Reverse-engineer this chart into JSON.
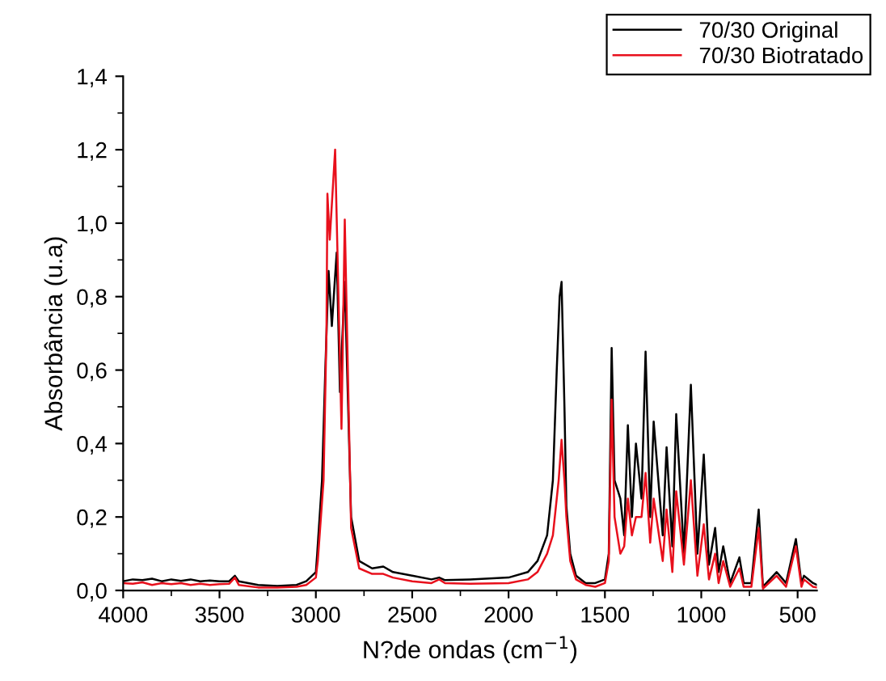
{
  "chart_data": {
    "type": "line",
    "xlabel": "N?de ondas (cm$^{−1}$)",
    "ylabel": "Absorbância (u.a)",
    "xlim": [
      4000,
      400
    ],
    "ylim": [
      0,
      1.4
    ],
    "xticks": [
      4000,
      3500,
      3000,
      2500,
      2000,
      1500,
      1000,
      500
    ],
    "yticks": [
      {
        "value": 0,
        "label": "0,0"
      },
      {
        "value": 0.2,
        "label": "0,2"
      },
      {
        "value": 0.4,
        "label": "0,4"
      },
      {
        "value": 0.6,
        "label": "0,6"
      },
      {
        "value": 0.8,
        "label": "0,8"
      },
      {
        "value": 1.0,
        "label": "1,0"
      },
      {
        "value": 1.2,
        "label": "1,2"
      },
      {
        "value": 1.4,
        "label": "1,4"
      }
    ],
    "legend": "top right",
    "grid": false,
    "marker": "none",
    "line_style": "solid",
    "series": [
      {
        "name": "70/30 Original",
        "color": "#000000",
        "x": [
          4000,
          3950,
          3900,
          3850,
          3800,
          3750,
          3700,
          3650,
          3600,
          3550,
          3500,
          3450,
          3420,
          3400,
          3300,
          3200,
          3100,
          3050,
          3000,
          2993,
          2968,
          2951,
          2934,
          2917,
          2892,
          2875,
          2850,
          2817,
          2775,
          2708,
          2650,
          2600,
          2500,
          2400,
          2360,
          2330,
          2200,
          2000,
          1900,
          1850,
          1800,
          1770,
          1750,
          1735,
          1725,
          1710,
          1700,
          1680,
          1650,
          1600,
          1550,
          1500,
          1480,
          1465,
          1450,
          1420,
          1400,
          1381,
          1360,
          1339,
          1310,
          1289,
          1265,
          1247,
          1200,
          1180,
          1150,
          1130,
          1090,
          1054,
          1020,
          987,
          960,
          928,
          910,
          886,
          850,
          802,
          780,
          740,
          702,
          680,
          609,
          560,
          509,
          480,
          467,
          420,
          400
        ],
        "values": [
          0.025,
          0.03,
          0.028,
          0.032,
          0.025,
          0.03,
          0.026,
          0.03,
          0.025,
          0.027,
          0.025,
          0.025,
          0.04,
          0.025,
          0.015,
          0.012,
          0.015,
          0.025,
          0.05,
          0.1,
          0.3,
          0.6,
          0.87,
          0.72,
          0.92,
          0.54,
          0.84,
          0.2,
          0.08,
          0.06,
          0.065,
          0.05,
          0.04,
          0.03,
          0.035,
          0.028,
          0.03,
          0.035,
          0.05,
          0.08,
          0.15,
          0.3,
          0.6,
          0.8,
          0.84,
          0.5,
          0.23,
          0.1,
          0.04,
          0.02,
          0.02,
          0.03,
          0.1,
          0.66,
          0.3,
          0.25,
          0.15,
          0.45,
          0.2,
          0.4,
          0.25,
          0.65,
          0.2,
          0.46,
          0.15,
          0.39,
          0.12,
          0.48,
          0.1,
          0.56,
          0.1,
          0.37,
          0.07,
          0.17,
          0.05,
          0.12,
          0.02,
          0.09,
          0.02,
          0.02,
          0.22,
          0.01,
          0.05,
          0.02,
          0.14,
          0.02,
          0.04,
          0.02,
          0.015
        ]
      },
      {
        "name": "70/30 Biotratado",
        "color": "#e8101c",
        "x": [
          4000,
          3950,
          3900,
          3850,
          3800,
          3750,
          3700,
          3650,
          3600,
          3550,
          3500,
          3450,
          3420,
          3400,
          3300,
          3200,
          3100,
          3050,
          3000,
          2990,
          2960,
          2945,
          2940,
          2928,
          2900,
          2867,
          2850,
          2817,
          2775,
          2708,
          2650,
          2600,
          2500,
          2400,
          2360,
          2330,
          2200,
          2000,
          1900,
          1850,
          1800,
          1770,
          1740,
          1725,
          1710,
          1700,
          1680,
          1650,
          1600,
          1550,
          1500,
          1480,
          1465,
          1450,
          1420,
          1400,
          1381,
          1360,
          1339,
          1310,
          1289,
          1265,
          1247,
          1200,
          1180,
          1150,
          1130,
          1090,
          1054,
          1020,
          987,
          960,
          928,
          910,
          886,
          850,
          802,
          780,
          740,
          702,
          680,
          609,
          560,
          509,
          480,
          467,
          420,
          400
        ],
        "values": [
          0.02,
          0.018,
          0.022,
          0.015,
          0.02,
          0.017,
          0.02,
          0.015,
          0.018,
          0.015,
          0.017,
          0.018,
          0.035,
          0.015,
          0.008,
          0.008,
          0.01,
          0.015,
          0.035,
          0.08,
          0.3,
          0.7,
          1.08,
          0.955,
          1.2,
          0.44,
          1.01,
          0.17,
          0.06,
          0.045,
          0.045,
          0.035,
          0.025,
          0.02,
          0.03,
          0.02,
          0.018,
          0.02,
          0.03,
          0.05,
          0.1,
          0.15,
          0.3,
          0.41,
          0.3,
          0.2,
          0.08,
          0.03,
          0.015,
          0.01,
          0.02,
          0.08,
          0.52,
          0.2,
          0.1,
          0.12,
          0.25,
          0.15,
          0.2,
          0.2,
          0.32,
          0.13,
          0.25,
          0.08,
          0.22,
          0.05,
          0.27,
          0.07,
          0.3,
          0.04,
          0.18,
          0.03,
          0.1,
          0.02,
          0.08,
          0.01,
          0.06,
          0.01,
          0.01,
          0.17,
          0.005,
          0.04,
          0.01,
          0.12,
          0.01,
          0.03,
          0.01,
          0.008
        ]
      }
    ]
  }
}
